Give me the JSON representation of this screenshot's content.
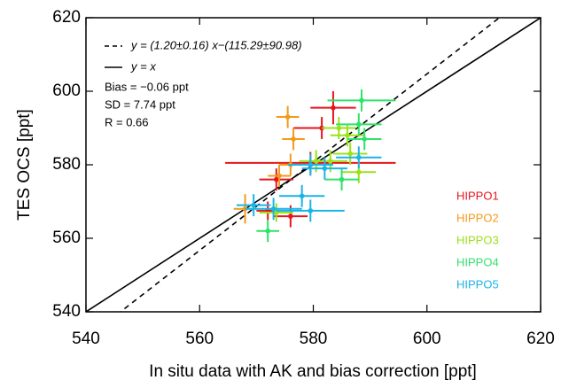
{
  "chart_data": {
    "type": "scatter",
    "xlabel": "In situ data with AK and bias correction [ppt]",
    "ylabel": "TES OCS [ppt]",
    "xlim": [
      540,
      620
    ],
    "ylim": [
      540,
      620
    ],
    "xticks": [
      540,
      560,
      580,
      600,
      620
    ],
    "yticks": [
      540,
      560,
      580,
      600,
      620
    ],
    "lines": [
      {
        "label": "y = (1.20±0.16) x−(115.29±90.98)",
        "slope": 1.2,
        "intercept": -115.29,
        "dashed": true
      },
      {
        "label": "y = x",
        "slope": 1,
        "intercept": 0,
        "dashed": false
      }
    ],
    "annotations": [
      "Bias = −0.06 ppt",
      "SD = 7.74 ppt",
      "R = 0.66"
    ],
    "series": [
      {
        "name": "HIPPO1",
        "color": "#e8141c",
        "x": [
          583.5,
          581.5,
          579.5,
          573.5,
          576,
          572
        ],
        "y": [
          595.5,
          590,
          580.5,
          576,
          566,
          567.5
        ],
        "xerr": [
          4,
          5,
          15,
          3,
          3,
          2
        ],
        "yerr": [
          4.5,
          3,
          3,
          3,
          3,
          2.5
        ]
      },
      {
        "name": "HIPPO2",
        "color": "#f39a1b",
        "x": [
          575.5,
          576.5,
          568,
          576,
          574
        ],
        "y": [
          593,
          587,
          568,
          580,
          577
        ],
        "xerr": [
          2,
          2,
          2,
          2,
          2
        ],
        "yerr": [
          3,
          3,
          4,
          3,
          3
        ]
      },
      {
        "name": "HIPPO3",
        "color": "#9be21a",
        "x": [
          584.5,
          586,
          586.5,
          583,
          580.5,
          588,
          573.5
        ],
        "y": [
          590,
          588,
          583,
          581,
          581,
          578,
          567
        ],
        "xerr": [
          3,
          3,
          3,
          3,
          3,
          3,
          3
        ],
        "yerr": [
          3,
          3,
          3,
          3,
          3,
          3,
          2.5
        ]
      },
      {
        "name": "HIPPO4",
        "color": "#2ee36a",
        "x": [
          588.5,
          589,
          585,
          572,
          588
        ],
        "y": [
          597.5,
          587,
          576,
          562,
          591
        ],
        "xerr": [
          6,
          3,
          3,
          2,
          4
        ],
        "yerr": [
          3,
          3,
          3,
          3,
          3
        ]
      },
      {
        "name": "HIPPO5",
        "color": "#19b4e8",
        "x": [
          579.5,
          588,
          578,
          579.5,
          569.5,
          573,
          582
        ],
        "y": [
          580,
          582,
          571.5,
          567.5,
          569,
          568,
          579
        ],
        "xerr": [
          4,
          4,
          4,
          6,
          3,
          5,
          4
        ],
        "yerr": [
          3,
          3,
          3,
          3,
          3,
          3,
          3
        ]
      }
    ]
  }
}
